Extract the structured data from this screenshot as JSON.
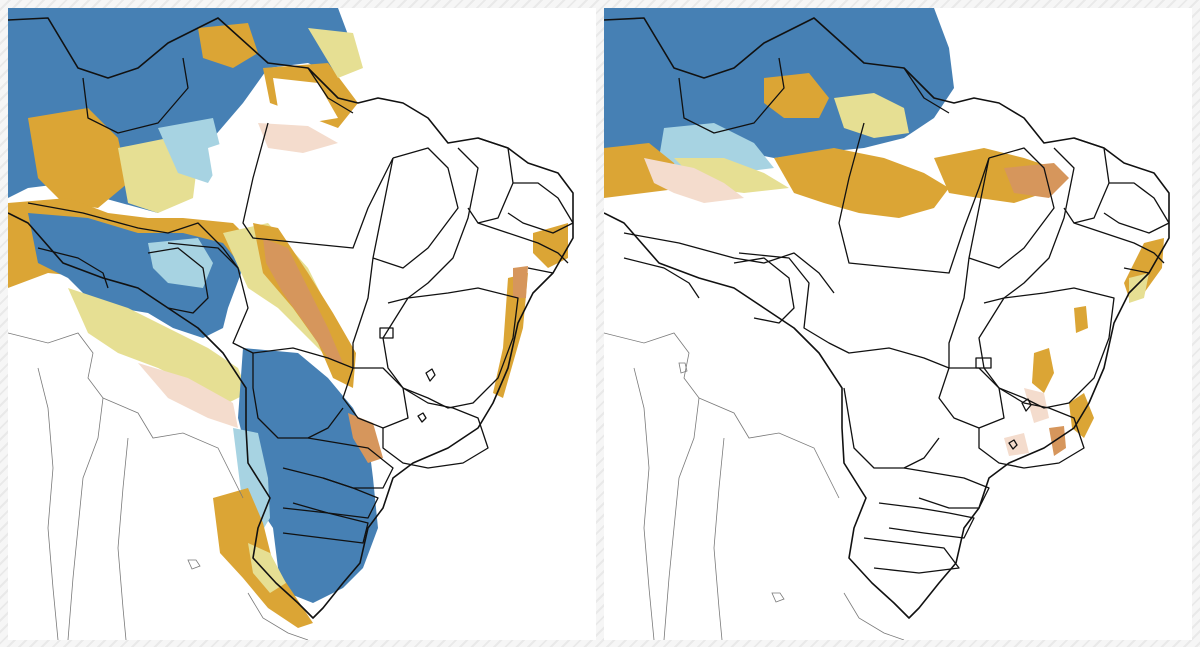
{
  "panels": [
    {
      "id": "left"
    },
    {
      "id": "right"
    }
  ],
  "colors": {
    "deep_blue": "#4680b4",
    "light_blue": "#a7d3e2",
    "pale_yellow": "#e6df93",
    "gold": "#dba535",
    "tan": "#d6965c",
    "pale_salmon": "#f4dccd",
    "border_black": "#111111",
    "border_grey": "#7a7a7a",
    "background": "#ffffff"
  },
  "legend": []
}
